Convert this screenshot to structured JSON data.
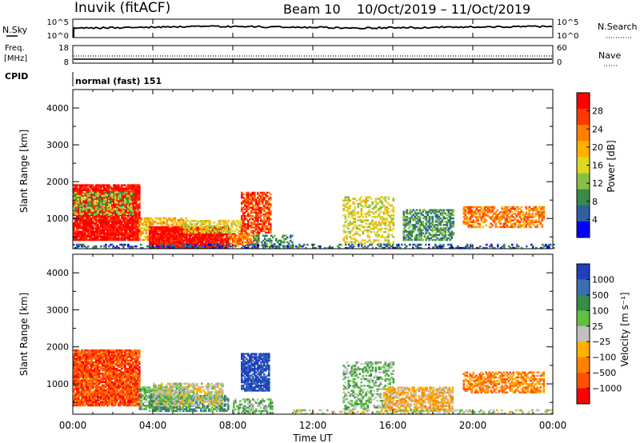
{
  "header": {
    "station": "Inuvik (fitACF)",
    "beam": "Beam 10",
    "dates": "10/Oct/2019 – 11/Oct/2019"
  },
  "top_panels": {
    "nsky_label": "N.Sky",
    "nsky_ticks": [
      "10^5",
      "10^0"
    ],
    "nsearch_label": "N.Search",
    "nsearch_ticks": [
      "10^5",
      "10^0"
    ],
    "freq_label_1": "Freq.",
    "freq_label_2": "[MHz]",
    "freq_ticks": [
      "18",
      "8"
    ],
    "nave_label": "Nave",
    "nave_ticks": [
      "60",
      "0"
    ],
    "cpid_label": "CPID",
    "cpid_value": "normal (fast) 151"
  },
  "chart_data": [
    {
      "type": "heatmap",
      "name": "power",
      "ylabel": "Slant Range [km]",
      "ylim": [
        180,
        4500
      ],
      "yticks": [
        "4000",
        "3000",
        "2000",
        "1000"
      ],
      "xlabel": "Time UT",
      "xlim_hours": [
        0,
        24
      ],
      "colorbar_label": "Power [dB]",
      "colorbar_ticks": [
        "28",
        "24",
        "20",
        "16",
        "12",
        "8",
        "4"
      ],
      "colorbar_colors": [
        "#ff0000",
        "#ff3a00",
        "#ff7f00",
        "#ffb000",
        "#e0d820",
        "#88c040",
        "#3a8a4a",
        "#3060a0",
        "#0000ff"
      ],
      "patches": [
        {
          "t0": 0.0,
          "t1": 3.3,
          "r0": 400,
          "r1": 1900,
          "c": 0,
          "d": 0.9
        },
        {
          "t0": 0.0,
          "t1": 3.0,
          "r0": 1100,
          "r1": 1700,
          "c": 5,
          "d": 0.5
        },
        {
          "t0": 3.3,
          "t1": 5.7,
          "r0": 400,
          "r1": 1000,
          "c": 3,
          "d": 0.6
        },
        {
          "t0": 3.8,
          "t1": 7.8,
          "r0": 200,
          "r1": 750,
          "c": 0,
          "d": 0.95
        },
        {
          "t0": 5.5,
          "t1": 8.5,
          "r0": 600,
          "r1": 950,
          "c": 4,
          "d": 0.6
        },
        {
          "t0": 7.8,
          "t1": 9.3,
          "r0": 250,
          "r1": 600,
          "c": 2,
          "d": 0.7
        },
        {
          "t0": 8.4,
          "t1": 9.9,
          "r0": 600,
          "r1": 1700,
          "c": 1,
          "d": 0.7
        },
        {
          "t0": 9.0,
          "t1": 11.0,
          "r0": 200,
          "r1": 550,
          "c": 6,
          "d": 0.4
        },
        {
          "t0": 13.5,
          "t1": 16.0,
          "r0": 300,
          "r1": 1600,
          "c": 4,
          "d": 0.4
        },
        {
          "t0": 16.5,
          "t1": 19.0,
          "r0": 400,
          "r1": 1250,
          "c": 6,
          "d": 0.6
        },
        {
          "t0": 19.5,
          "t1": 23.5,
          "r0": 750,
          "r1": 1300,
          "c": 2,
          "d": 0.6
        },
        {
          "t0": 0.0,
          "t1": 24.0,
          "r0": 180,
          "r1": 300,
          "c": 7,
          "d": 0.35
        }
      ]
    },
    {
      "type": "heatmap",
      "name": "velocity",
      "ylabel": "Slant Range [km]",
      "ylim": [
        180,
        4500
      ],
      "yticks": [
        "4000",
        "3000",
        "2000",
        "1000"
      ],
      "xlabel": "Time UT",
      "xlim_hours": [
        0,
        24
      ],
      "xticks": [
        "00:00",
        "04:00",
        "08:00",
        "12:00",
        "16:00",
        "20:00",
        "00:00"
      ],
      "colorbar_label": "Velocity [m s⁻¹]",
      "colorbar_ticks": [
        "1000",
        "500",
        "100",
        "25",
        "−25",
        "−100",
        "−500",
        "−1000"
      ],
      "colorbar_colors": [
        "#2040c0",
        "#3a70b0",
        "#3a8a4a",
        "#60c040",
        "#c0c0c0",
        "#ffb000",
        "#ff8000",
        "#ff5000",
        "#ff0000"
      ],
      "patches": [
        {
          "t0": 0.0,
          "t1": 3.3,
          "r0": 400,
          "r1": 1900,
          "c": 7,
          "d": 0.9
        },
        {
          "t0": 3.3,
          "t1": 5.7,
          "r0": 300,
          "r1": 900,
          "c": 3,
          "d": 0.6
        },
        {
          "t0": 3.8,
          "t1": 7.8,
          "r0": 250,
          "r1": 700,
          "c": 2,
          "d": 0.7
        },
        {
          "t0": 4.0,
          "t1": 7.5,
          "r0": 400,
          "r1": 1000,
          "c": 4,
          "d": 0.6
        },
        {
          "t0": 8.4,
          "t1": 9.8,
          "r0": 800,
          "r1": 1800,
          "c": 0,
          "d": 0.8
        },
        {
          "t0": 8.0,
          "t1": 10.0,
          "r0": 200,
          "r1": 600,
          "c": 3,
          "d": 0.5
        },
        {
          "t0": 13.5,
          "t1": 16.0,
          "r0": 300,
          "r1": 1600,
          "c": 3,
          "d": 0.4
        },
        {
          "t0": 15.5,
          "t1": 19.0,
          "r0": 250,
          "r1": 900,
          "c": 5,
          "d": 0.7
        },
        {
          "t0": 19.5,
          "t1": 23.5,
          "r0": 750,
          "r1": 1300,
          "c": 6,
          "d": 0.6
        },
        {
          "t0": 11.0,
          "t1": 24.0,
          "r0": 180,
          "r1": 300,
          "c": 4,
          "d": 0.35
        }
      ]
    }
  ]
}
